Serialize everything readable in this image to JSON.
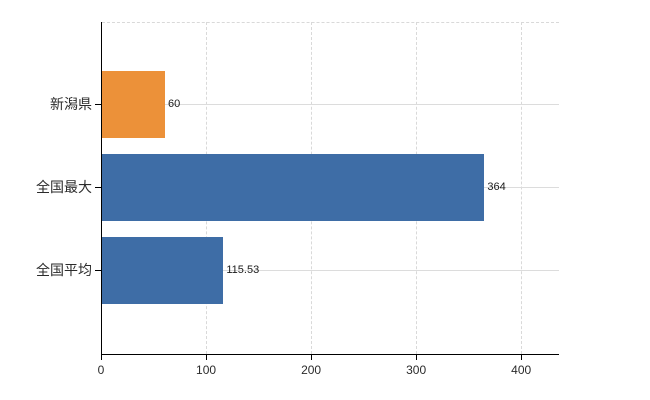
{
  "chart_data": {
    "type": "bar",
    "orientation": "horizontal",
    "title": "",
    "xlabel": "",
    "ylabel": "",
    "categories": [
      "新潟県",
      "全国最大",
      "全国平均"
    ],
    "values": [
      60,
      364,
      115.53
    ],
    "value_labels": [
      "60",
      "364",
      "115.53"
    ],
    "bar_colors": [
      "#EC9139",
      "#3E6DA6",
      "#3E6DA6"
    ],
    "x_ticks": [
      0,
      100,
      200,
      300,
      400
    ],
    "x_tick_labels": [
      "0",
      "100",
      "200",
      "300",
      "400"
    ],
    "xlim": [
      0,
      436
    ],
    "grid": "vertical dashed gridlines at ticks, horizontal line at each category center",
    "legend": "none"
  },
  "colors": {
    "background": "#ffffff",
    "axis": "#000000",
    "gridline": "#d9d9d9",
    "orange_bar": "#EC9139",
    "blue_bar": "#3E6DA6",
    "text": "#2b2b2b"
  }
}
